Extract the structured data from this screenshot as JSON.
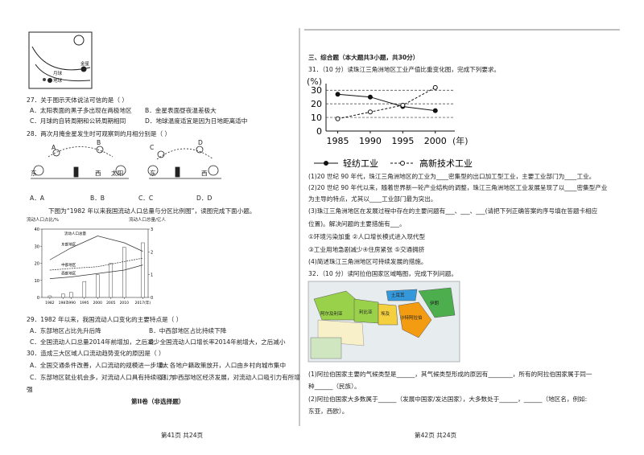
{
  "q27": {
    "stem": "27．关于图示天体说法可信的是（    ）",
    "options": [
      "A．太阳表面的黑子多出现在两极地区",
      "B．金星表面昼夜温差极大",
      "C．月球的自转周期和公转周期相同",
      "D．地球温度适宜是因为日地距离适中"
    ],
    "figure_labels": [
      "金星",
      "月球",
      "地球"
    ]
  },
  "q28": {
    "stem": "28．两次月掩金星发生时可观察到的月相分别是（    ）",
    "figure_labels": [
      "A",
      "B",
      "东",
      "西",
      "太阳",
      "C",
      "D",
      "东",
      "西"
    ],
    "options": [
      "A．A",
      "B．B",
      "C．C",
      "D．D"
    ]
  },
  "intro_29_30": "下图为“1982 年以来我国流动人口总量与分区比例图”，读图完成下面小题。",
  "population_chart": {
    "y_label": "流动人口占比/%",
    "y2_label": "流动人口总量/亿人",
    "legend": "流动人口总量",
    "xlim": [
      1979,
      2019
    ],
    "xticks": [
      1982,
      1987,
      1990,
      1995,
      2000,
      2005,
      2010,
      {
        "value": 2017,
        "label": "2017(年)"
      }
    ],
    "ylim": [
      0,
      40
    ],
    "yticks": [
      0,
      10,
      20,
      30,
      40
    ],
    "y2lim": [
      0,
      3
    ],
    "y2ticks": [
      0,
      1,
      2,
      3
    ],
    "bars": {
      "x": [
        1982,
        1987,
        1990,
        1995,
        2000,
        2005,
        2010,
        2017
      ],
      "values": [
        0.07,
        0.15,
        0.22,
        0.7,
        1.0,
        1.5,
        2.2,
        2.4
      ]
    },
    "series": [
      {
        "name": "东部地区",
        "color": "#333333",
        "x": [
          1982,
          1990,
          2000,
          2010,
          2017
        ],
        "values": [
          22,
          29,
          36,
          32,
          27
        ]
      },
      {
        "name": "中部地区",
        "color": "#333333",
        "x": [
          1982,
          1990,
          2000,
          2010,
          2017
        ],
        "values": [
          16,
          17,
          18,
          21,
          23
        ]
      },
      {
        "name": "西部地区",
        "color": "#333333",
        "x": [
          1982,
          1990,
          2000,
          2010,
          2017
        ],
        "values": [
          11,
          12,
          14,
          16,
          19
        ]
      }
    ]
  },
  "q29": {
    "stem": "29．1982 年以来，我国流动人口变化的主要特点是（    ）",
    "options": [
      "A．东部地区占比先升后降",
      "B．中西部地区占比持续下降",
      "C．全国流动人口总量2014年前增加，之后减少",
      "D．全国流动人口增长率2014年前增大，之后减小"
    ]
  },
  "q30": {
    "stem": "30．造成三大区域人口流动趋势变化的原因是（    ）",
    "options": [
      "A．全国交通条件改善，人口流动的规模进一步增大",
      "B．各地户籍政策放开，人口由乡村向城市集中",
      "C．东部地区就业机会多，对流动人口具有持续吸引力",
      "D．中西部地区经济发展，对流动人口吸引力有所增",
      "强"
    ]
  },
  "part2_title": "第II卷（非选择题）",
  "footer_left": "第41页  共24页",
  "section3": "三、综合题（本大题共3小题，共30分）",
  "q31": {
    "stem": "31．（10 分）读珠江三角洲地区工业产值比重变化图，完成下列要求。",
    "chart": {
      "type": "line",
      "y_label": "(%)",
      "x_label": "(年)",
      "x": [
        1985,
        1990,
        1995,
        2000
      ],
      "xlim": [
        1983.2,
        2003
      ],
      "ylim": [
        0,
        32.5
      ],
      "yticks": [
        0,
        10,
        20,
        30
      ],
      "grid": true,
      "series": [
        {
          "name": "轻纺工业",
          "color": "#111111",
          "marker": "filled",
          "values": [
            27,
            25,
            18,
            15
          ]
        },
        {
          "name": "高新技术工业",
          "color": "#111111",
          "marker": "open",
          "values": [
            9,
            14,
            19,
            32
          ]
        }
      ]
    },
    "lines": [
      "(1)20 世纪 90 年代，珠江三角洲地区的工业为____密集型的出口加工型工业，主要工业部门为____工业。",
      "(2)20 世纪 90 年代以来，随着世界新一轮产业结构的调整，珠江三角洲地区工业发展呈现了以____密集型产业",
      "为主导的特点，尤其以____工业部门最为突出。",
      "(3)珠江三角洲地区在发展过程中存在的主要问题有___、___、___(请把下列正确答案的序号填在答题卡相应",
      "位置)。解决问题的主要措施有___。",
      "①环境污染加重  ②人口增长模式进入现代型",
      "③工业用地急剧减少④住房紧张  ⑤交通拥挤",
      "(4)简述珠江三角洲地区可持续发展的措施。"
    ]
  },
  "q32": {
    "stem": "32．（10 分）读阿拉伯国家区域略图，完成下列问题。",
    "map_labels": [
      "阿尔及利亚",
      "利比亚",
      "埃及",
      "沙特阿拉伯",
      "伊朗",
      "土耳其"
    ],
    "lines": [
      "(1)阿拉伯国家主要的气候类型是______，其气候类型形成的原因有________，所有的阿拉伯国家属于同一",
      "种______（民族）。",
      "(2)阿拉伯国家大多数属于______（发展中国家/发达国家），大多数处于______，______（地区名，例如:",
      "东亚，西欧）。"
    ]
  },
  "footer_right": "第42页  共24页"
}
